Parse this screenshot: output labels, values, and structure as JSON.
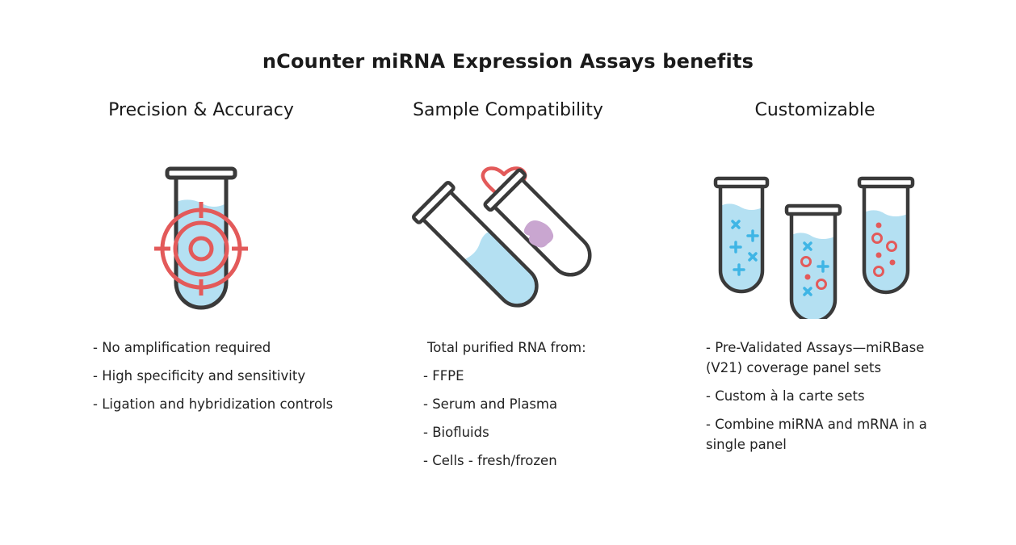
{
  "title": "nCounter miRNA Expression Assays benefits",
  "colors": {
    "outline": "#3a3a3a",
    "liquid": "#b4e0f2",
    "accent_red": "#e35a5a",
    "accent_blue": "#3fb5e5",
    "tissue": "#c9a6d0"
  },
  "columns": [
    {
      "heading": "Precision & Accuracy",
      "icon": "test-tube-target-icon",
      "bullets": [
        "- No amplification required",
        "- High specificity and sensitivity",
        "- Ligation and hybridization controls"
      ]
    },
    {
      "heading": "Sample Compatibility",
      "icon": "test-tubes-heart-icon",
      "intro": "Total purified RNA from:",
      "bullets": [
        "- FFPE",
        "- Serum and Plasma",
        "- Biofluids",
        "- Cells - fresh/frozen"
      ]
    },
    {
      "heading": "Customizable",
      "icon": "three-test-tubes-icon",
      "bullets": [
        "- Pre-Validated Assays—miRBase (V21) coverage panel sets",
        "- Custom à la carte sets",
        "- Combine miRNA and mRNA in a single panel"
      ]
    }
  ]
}
